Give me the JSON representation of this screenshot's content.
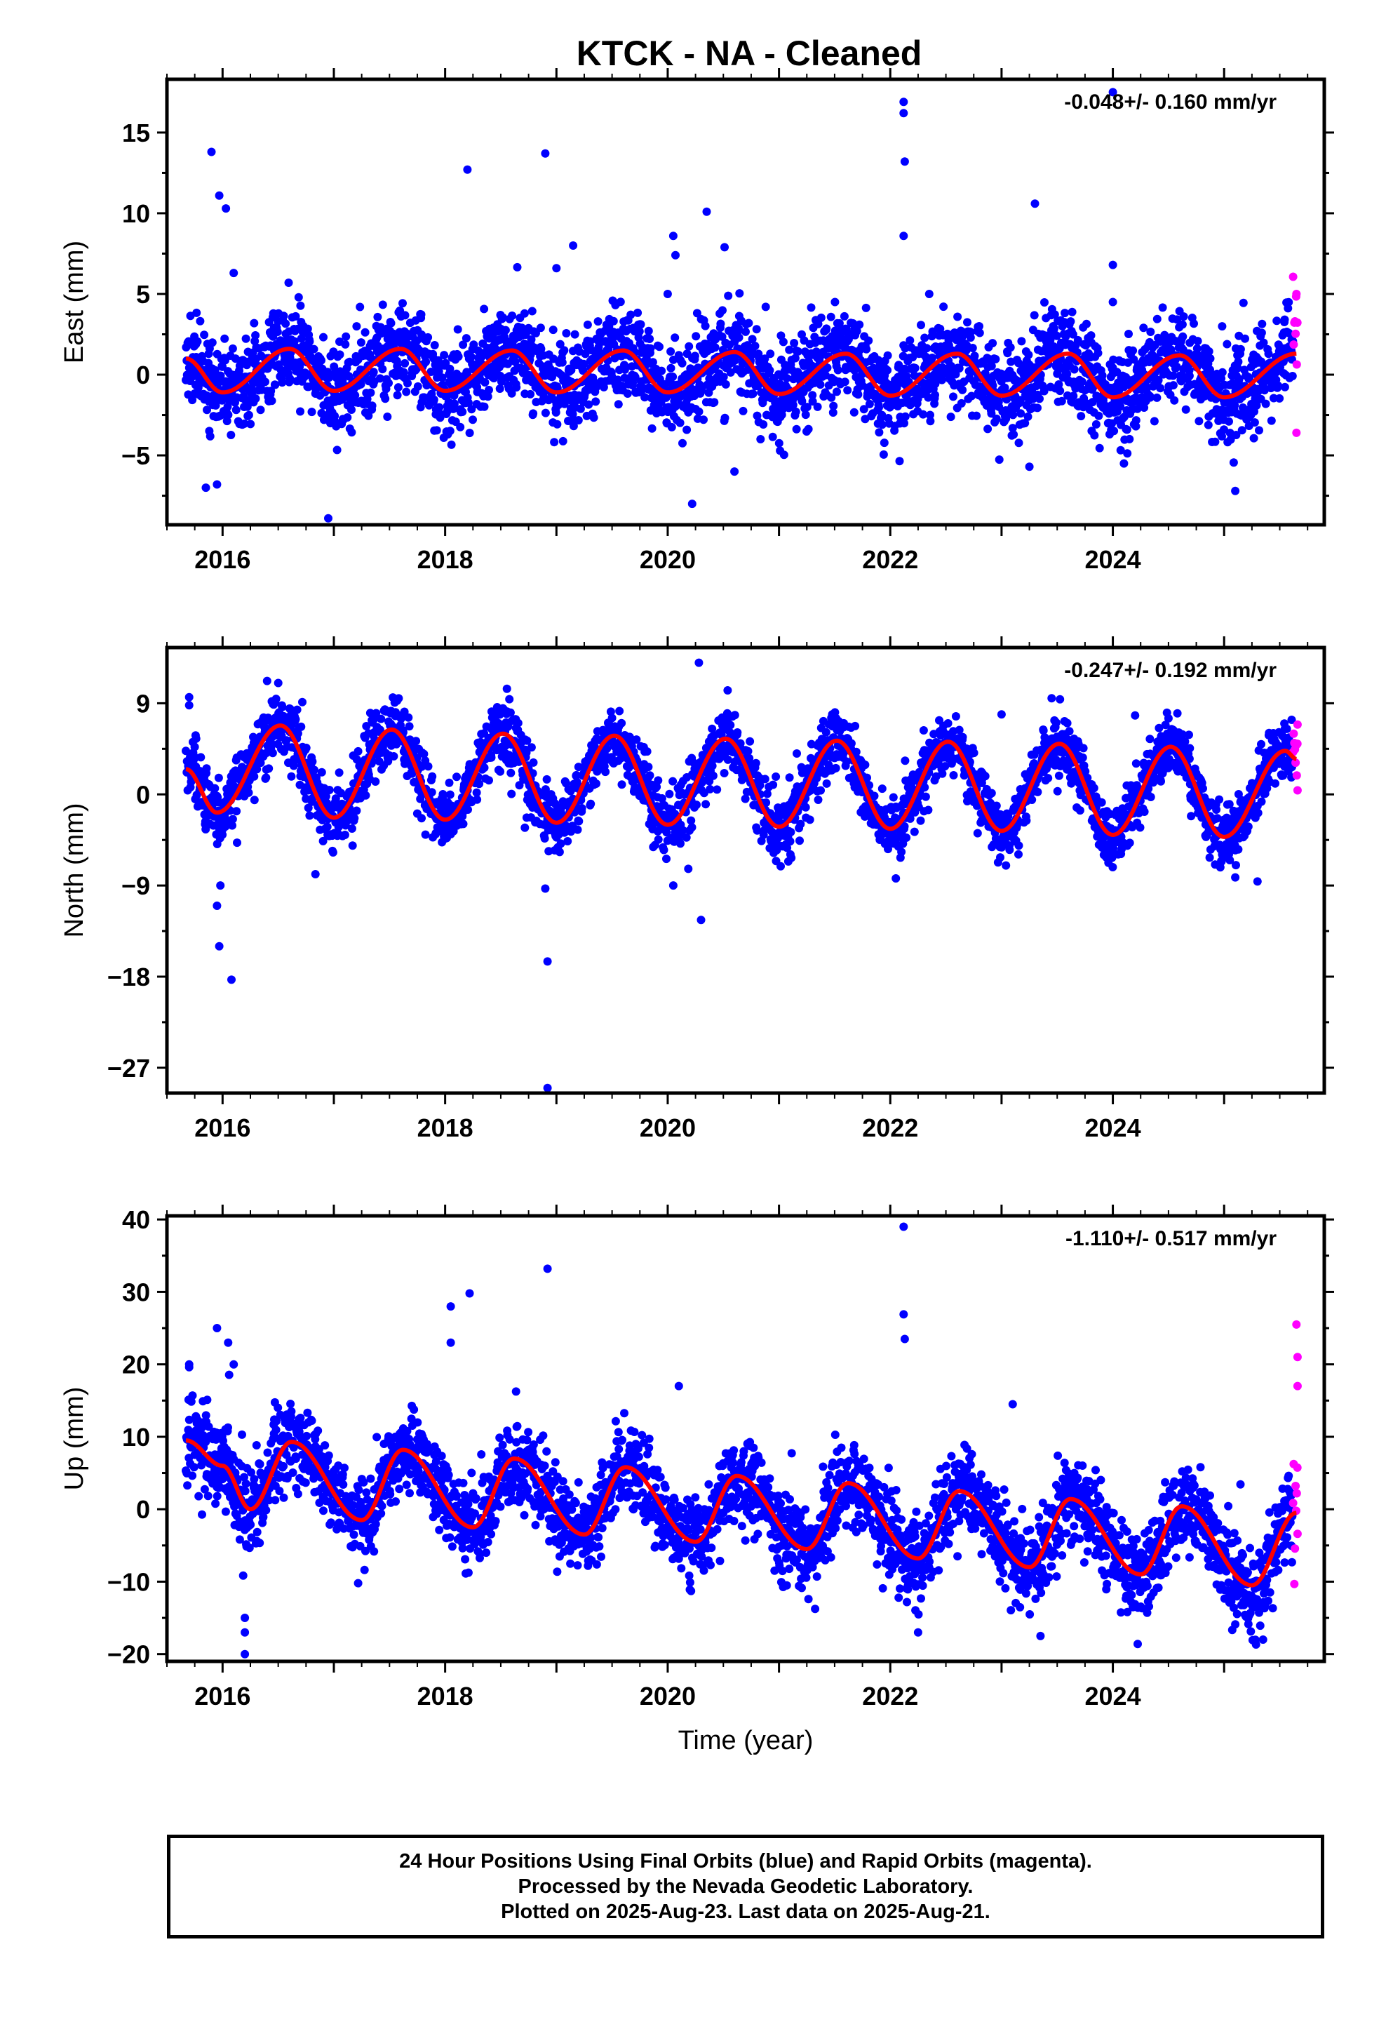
{
  "title": "KTCK  - NA - Cleaned",
  "colors": {
    "final": "#0000ff",
    "rapid": "#ff00ff",
    "model": "#ff0000"
  },
  "chart_data": [
    {
      "type": "scatter",
      "ylabel": "East (mm)",
      "xlabel": "",
      "rate": "-0.048+/- 0.160 mm/yr",
      "xlim": [
        2015.5,
        2025.9
      ],
      "ylim": [
        -9.3,
        18.3
      ],
      "yticks": [
        15,
        10,
        5,
        0,
        -5
      ],
      "yminor": [
        -7.5,
        -2.5,
        2.5,
        7.5,
        12.5
      ],
      "xticks": [
        2016,
        2018,
        2020,
        2022,
        2024
      ],
      "model": {
        "mean": 0.2,
        "trend": -0.048,
        "amp": 1.35,
        "phase": 2016.6,
        "end_x": 2025.65,
        "knots": [
          [
            2015.67,
            1.0
          ],
          [
            2016.0,
            -1.1
          ],
          [
            2016.6,
            1.6
          ],
          [
            2017.0,
            -1.0
          ],
          [
            2017.6,
            1.6
          ],
          [
            2018.0,
            -1.0
          ],
          [
            2018.6,
            1.5
          ],
          [
            2019.0,
            -1.1
          ],
          [
            2019.6,
            1.5
          ],
          [
            2020.0,
            -1.1
          ],
          [
            2020.6,
            1.4
          ],
          [
            2021.0,
            -1.2
          ],
          [
            2021.6,
            1.3
          ],
          [
            2022.0,
            -1.3
          ],
          [
            2022.6,
            1.3
          ],
          [
            2023.0,
            -1.3
          ],
          [
            2023.6,
            1.3
          ],
          [
            2024.0,
            -1.4
          ],
          [
            2024.6,
            1.2
          ],
          [
            2025.0,
            -1.4
          ],
          [
            2025.65,
            1.3
          ]
        ]
      },
      "scatter": {
        "noise": 1.4,
        "seed": 11,
        "rapid_start": 2025.62,
        "rapid_spread": 2.6
      },
      "outliers": [
        [
          2015.9,
          13.8
        ],
        [
          2015.97,
          11.1
        ],
        [
          2016.03,
          10.3
        ],
        [
          2015.95,
          -6.8
        ],
        [
          2015.85,
          -7.0
        ],
        [
          2016.1,
          6.3
        ],
        [
          2018.2,
          12.7
        ],
        [
          2018.9,
          13.7
        ],
        [
          2019.0,
          6.6
        ],
        [
          2019.15,
          8.0
        ],
        [
          2020.05,
          8.6
        ],
        [
          2020.07,
          7.4
        ],
        [
          2020.0,
          5.0
        ],
        [
          2020.35,
          10.1
        ],
        [
          2020.22,
          -8.0
        ],
        [
          2022.12,
          16.9
        ],
        [
          2022.12,
          16.2
        ],
        [
          2022.13,
          13.2
        ],
        [
          2022.12,
          8.6
        ],
        [
          2022.35,
          5.0
        ],
        [
          2023.3,
          10.6
        ],
        [
          2023.25,
          -5.7
        ],
        [
          2024.0,
          17.5
        ],
        [
          2024.0,
          6.8
        ],
        [
          2024.0,
          4.5
        ],
        [
          2024.1,
          -5.5
        ],
        [
          2016.95,
          -8.9
        ],
        [
          2020.6,
          -6.0
        ],
        [
          2025.1,
          -7.2
        ],
        [
          2025.65,
          5.0
        ],
        [
          2025.65,
          -3.6
        ]
      ]
    },
    {
      "type": "scatter",
      "ylabel": "North (mm)",
      "xlabel": "",
      "rate": "-0.247+/- 0.192 mm/yr",
      "xlim": [
        2015.5,
        2025.9
      ],
      "ylim": [
        -29.5,
        14.5
      ],
      "yticks": [
        9,
        0,
        -9,
        -18,
        -27
      ],
      "yminor": [
        -22.5,
        -13.5,
        -4.5,
        4.5
      ],
      "xticks": [
        2016,
        2018,
        2020,
        2022,
        2024
      ],
      "model": {
        "mean": 1.5,
        "trend": -0.247,
        "amp": 4.6,
        "phase": 2016.52,
        "end_x": 2025.65,
        "knots": [
          [
            2015.67,
            2.5
          ],
          [
            2015.95,
            -1.8
          ],
          [
            2016.52,
            6.8
          ],
          [
            2017.0,
            -2.3
          ],
          [
            2017.52,
            6.4
          ],
          [
            2018.0,
            -2.5
          ],
          [
            2018.52,
            6.0
          ],
          [
            2019.0,
            -2.8
          ],
          [
            2019.52,
            5.8
          ],
          [
            2020.0,
            -3.0
          ],
          [
            2020.52,
            5.5
          ],
          [
            2021.0,
            -3.2
          ],
          [
            2021.52,
            5.3
          ],
          [
            2022.0,
            -3.4
          ],
          [
            2022.52,
            5.2
          ],
          [
            2023.0,
            -3.6
          ],
          [
            2023.52,
            5.0
          ],
          [
            2024.0,
            -4.0
          ],
          [
            2024.52,
            4.7
          ],
          [
            2025.0,
            -4.2
          ],
          [
            2025.55,
            4.3
          ],
          [
            2025.65,
            3.5
          ]
        ]
      },
      "scatter": {
        "noise": 1.5,
        "seed": 22,
        "rapid_start": 2025.62,
        "rapid_spread": 2.0
      },
      "outliers": [
        [
          2015.7,
          9.6
        ],
        [
          2015.7,
          8.8
        ],
        [
          2015.98,
          -9.0
        ],
        [
          2015.95,
          -11.0
        ],
        [
          2015.97,
          -15.0
        ],
        [
          2016.08,
          -18.3
        ],
        [
          2016.4,
          11.2
        ],
        [
          2016.5,
          11.0
        ],
        [
          2018.92,
          -16.5
        ],
        [
          2018.9,
          -9.3
        ],
        [
          2018.92,
          -29.0
        ],
        [
          2020.05,
          -9.0
        ],
        [
          2020.28,
          13.0
        ],
        [
          2020.3,
          -12.4
        ],
        [
          2022.05,
          -8.3
        ],
        [
          2023.0,
          7.9
        ],
        [
          2023.45,
          9.5
        ],
        [
          2024.2,
          7.8
        ],
        [
          2024.58,
          8.0
        ],
        [
          2025.1,
          -8.2
        ],
        [
          2025.3,
          -8.6
        ],
        [
          2025.66,
          6.9
        ],
        [
          2025.66,
          0.4
        ]
      ]
    },
    {
      "type": "scatter",
      "ylabel": "Up (mm)",
      "xlabel": "Time (year)",
      "rate": "-1.110+/- 0.517 mm/yr",
      "xlim": [
        2015.5,
        2025.9
      ],
      "ylim": [
        -21.0,
        40.5
      ],
      "yticks": [
        40,
        30,
        20,
        10,
        0,
        -10,
        -20
      ],
      "yminor": [
        -15,
        -5,
        5,
        15,
        25,
        35
      ],
      "xticks": [
        2016,
        2018,
        2020,
        2022,
        2024
      ],
      "model": {
        "mean": 2.5,
        "trend": -1.11,
        "amp": 5.0,
        "phase": 2016.62,
        "end_x": 2025.65,
        "knots": [
          [
            2015.67,
            9.5
          ],
          [
            2016.0,
            6.0
          ],
          [
            2016.25,
            0.0
          ],
          [
            2016.62,
            9.3
          ],
          [
            2017.25,
            -1.5
          ],
          [
            2017.62,
            8.2
          ],
          [
            2018.25,
            -2.5
          ],
          [
            2018.62,
            7.0
          ],
          [
            2019.25,
            -3.5
          ],
          [
            2019.62,
            5.8
          ],
          [
            2020.25,
            -4.5
          ],
          [
            2020.62,
            4.6
          ],
          [
            2021.25,
            -5.5
          ],
          [
            2021.62,
            3.6
          ],
          [
            2022.25,
            -6.8
          ],
          [
            2022.62,
            2.5
          ],
          [
            2023.25,
            -8.0
          ],
          [
            2023.62,
            1.4
          ],
          [
            2024.25,
            -9.0
          ],
          [
            2024.62,
            0.4
          ],
          [
            2025.25,
            -10.5
          ],
          [
            2025.65,
            -0.5
          ]
        ]
      },
      "scatter": {
        "noise": 3.0,
        "seed": 33,
        "rapid_start": 2025.62,
        "rapid_spread": 9.0
      },
      "outliers": [
        [
          2015.7,
          20.0
        ],
        [
          2015.7,
          19.6
        ],
        [
          2015.95,
          25.0
        ],
        [
          2016.05,
          23.0
        ],
        [
          2016.1,
          20.0
        ],
        [
          2016.2,
          -15.0
        ],
        [
          2016.2,
          -17.0
        ],
        [
          2016.2,
          -20.0
        ],
        [
          2018.05,
          28.0
        ],
        [
          2018.05,
          23.0
        ],
        [
          2018.22,
          29.8
        ],
        [
          2018.92,
          33.2
        ],
        [
          2020.1,
          17.0
        ],
        [
          2022.12,
          39.0
        ],
        [
          2022.12,
          26.9
        ],
        [
          2022.13,
          23.5
        ],
        [
          2022.25,
          -17.0
        ],
        [
          2023.1,
          14.5
        ],
        [
          2023.35,
          -17.5
        ],
        [
          2025.35,
          -18.0
        ],
        [
          2025.65,
          25.5
        ],
        [
          2025.66,
          21.0
        ],
        [
          2025.66,
          17.0
        ],
        [
          2025.66,
          -3.4
        ]
      ]
    }
  ],
  "footer": {
    "line1": "24 Hour Positions Using Final Orbits (blue) and Rapid Orbits (magenta).",
    "line2": "Processed by the Nevada Geodetic Laboratory.",
    "line3": "Plotted on 2025-Aug-23. Last data on 2025-Aug-21."
  }
}
